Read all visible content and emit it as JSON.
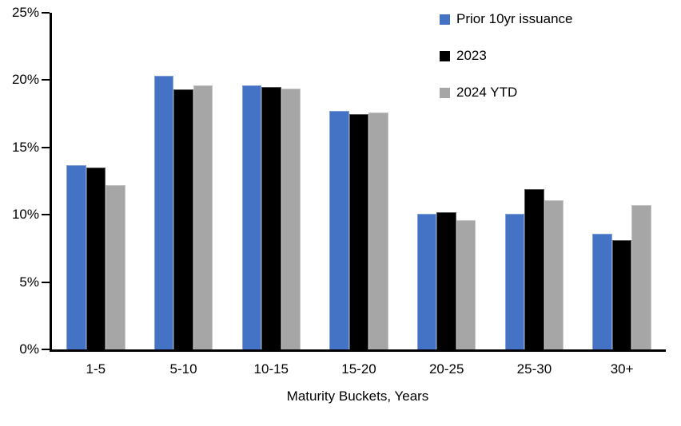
{
  "chart_data": {
    "type": "bar",
    "categories": [
      "1-5",
      "5-10",
      "10-15",
      "15-20",
      "20-25",
      "25-30",
      "30+"
    ],
    "series": [
      {
        "name": "Prior 10yr issuance",
        "color": "#4472C4",
        "values": [
          13.7,
          20.3,
          19.6,
          17.7,
          10.1,
          10.1,
          8.6
        ]
      },
      {
        "name": "2023",
        "color": "#000000",
        "values": [
          13.5,
          19.3,
          19.5,
          17.5,
          10.2,
          11.9,
          8.1
        ]
      },
      {
        "name": "2024 YTD",
        "color": "#A6A6A6",
        "values": [
          12.2,
          19.6,
          19.4,
          17.6,
          9.6,
          11.1,
          10.7
        ]
      }
    ],
    "xlabel": "Maturity Buckets, Years",
    "unit": "%",
    "ylim": [
      0,
      25
    ],
    "yticks": [
      {
        "value": 0,
        "label": "0%"
      },
      {
        "value": 5,
        "label": "5%"
      },
      {
        "value": 10,
        "label": "10%"
      },
      {
        "value": 15,
        "label": "15%"
      },
      {
        "value": 20,
        "label": "20%"
      },
      {
        "value": 25,
        "label": "25%"
      }
    ],
    "grid": false,
    "legend_position": "top-right"
  }
}
